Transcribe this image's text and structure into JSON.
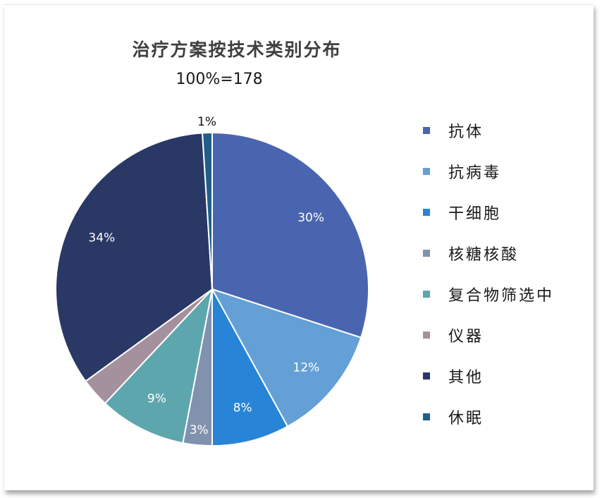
{
  "chart_data": {
    "type": "pie",
    "title": "治疗方案按技术类别分布",
    "subtitle": "100%=178",
    "legend_position": "right",
    "slices": [
      {
        "name": "抗体",
        "value": 30,
        "label": "30%",
        "color": "#4a65b0",
        "label_color": "#ffffff"
      },
      {
        "name": "抗病毒",
        "value": 12,
        "label": "12%",
        "color": "#64a0d6",
        "label_color": "#ffffff"
      },
      {
        "name": "干细胞",
        "value": 8,
        "label": "8%",
        "color": "#2784d6",
        "label_color": "#ffffff"
      },
      {
        "name": "核糖核酸",
        "value": 3,
        "label": "3%",
        "color": "#8092ad",
        "label_color": "#ffffff"
      },
      {
        "name": "复合物筛选中",
        "value": 9,
        "label": "9%",
        "color": "#5ea6ad",
        "label_color": "#ffffff"
      },
      {
        "name": "仪器",
        "value": 3,
        "label": "",
        "color": "#a5909d",
        "label_color": "#ffffff"
      },
      {
        "name": "其他",
        "value": 34,
        "label": "34%",
        "color": "#2a3866",
        "label_color": "#ffffff"
      },
      {
        "name": "休眠",
        "value": 1,
        "label": "1%",
        "color": "#1f5f8a",
        "label_color": "#111111"
      }
    ]
  }
}
